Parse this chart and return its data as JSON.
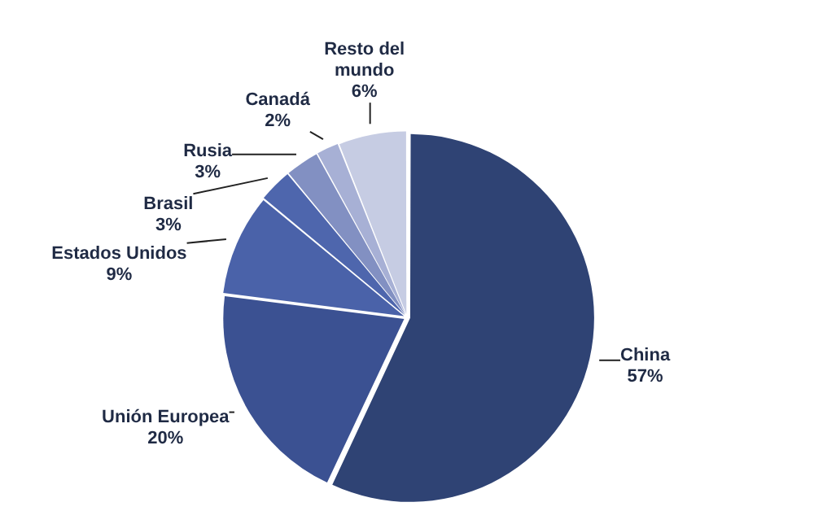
{
  "chart_data": {
    "type": "pie",
    "categories": [
      "China",
      "Unión Europea",
      "Estados Unidos",
      "Brasil",
      "Rusia",
      "Canadá",
      "Resto del mundo"
    ],
    "values": [
      57,
      20,
      9,
      3,
      3,
      2,
      6
    ],
    "value_labels": [
      "57%",
      "20%",
      "9%",
      "3%",
      "3%",
      "2%",
      "6%"
    ],
    "colors": [
      "#2f4374",
      "#3b5192",
      "#4a62a9",
      "#4e66ad",
      "#8290c2",
      "#a7b0d5",
      "#c6cce3"
    ]
  }
}
